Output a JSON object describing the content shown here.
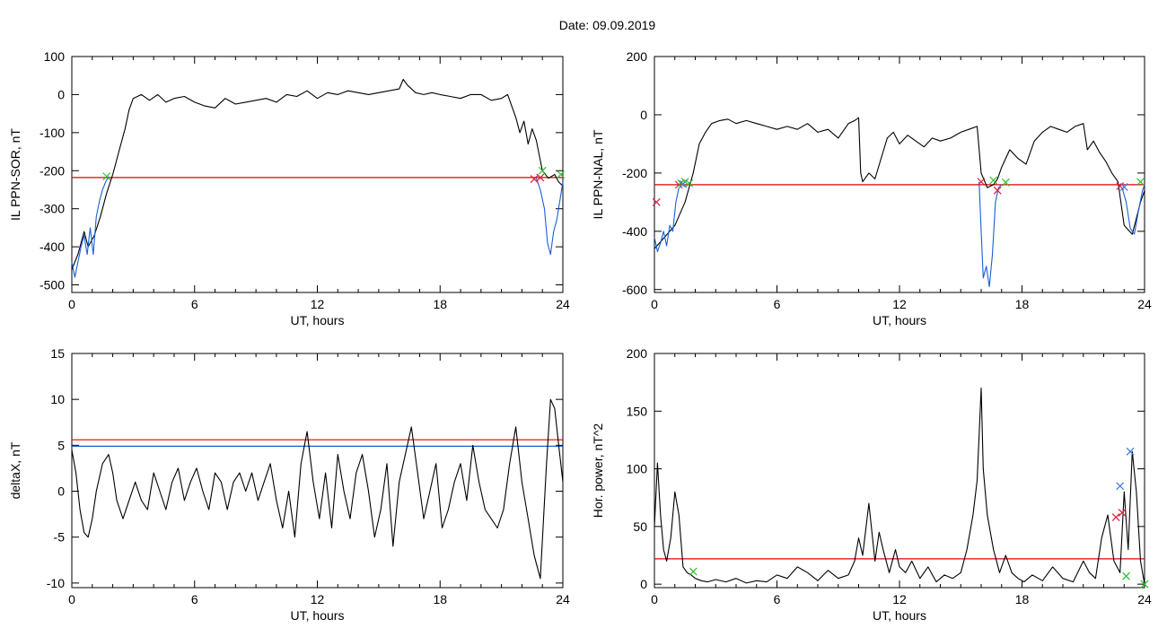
{
  "page": {
    "title": "Date:  09.09.2019"
  },
  "colors": {
    "black": "#000000",
    "red": "#e00000",
    "blue": "#1a5fd6",
    "green": "#22c022",
    "crimson": "#d81e3c",
    "cross_blue": "#3a7ad8"
  },
  "chart_data": [
    {
      "type": "line",
      "id": "il-ppn-sor",
      "xlabel": "UT, hours",
      "ylabel": "IL PPN-SOR, nT",
      "xlim": [
        0,
        24
      ],
      "ylim": [
        -520,
        100
      ],
      "xticks": [
        0,
        6,
        12,
        18,
        24
      ],
      "yticks": [
        100,
        0,
        -100,
        -200,
        -300,
        -400,
        -500
      ],
      "threshold": -218,
      "series": [
        {
          "color": "black",
          "x": [
            0,
            0.3,
            0.6,
            0.8,
            1.1,
            1.4,
            1.7,
            2.0,
            2.3,
            2.6,
            2.8,
            3.0,
            3.4,
            3.8,
            4.2,
            4.6,
            5.0,
            5.5,
            6.0,
            6.5,
            7.0,
            7.5,
            8.0,
            8.5,
            9.0,
            9.5,
            10.0,
            10.5,
            11.0,
            11.5,
            12.0,
            12.5,
            13.0,
            13.5,
            14.0,
            14.5,
            15.0,
            15.5,
            16.0,
            16.2,
            16.4,
            16.8,
            17.2,
            17.6,
            18.0,
            18.5,
            19.0,
            19.5,
            20.0,
            20.5,
            21.0,
            21.3,
            21.5,
            21.7,
            21.9,
            22.1,
            22.3,
            22.5,
            22.7,
            23.0,
            23.3,
            23.6,
            23.8,
            24.0
          ],
          "y": [
            -460,
            -420,
            -360,
            -400,
            -370,
            -320,
            -260,
            -210,
            -150,
            -90,
            -40,
            -10,
            0,
            -15,
            0,
            -20,
            -10,
            -5,
            -20,
            -30,
            -35,
            -10,
            -25,
            -20,
            -15,
            -10,
            -20,
            0,
            -5,
            10,
            -10,
            5,
            0,
            10,
            5,
            0,
            5,
            10,
            15,
            40,
            25,
            5,
            0,
            5,
            0,
            -5,
            -10,
            0,
            0,
            -15,
            -10,
            0,
            -30,
            -60,
            -100,
            -70,
            -130,
            -90,
            -120,
            -200,
            -220,
            -210,
            -230,
            -240
          ]
        },
        {
          "color": "blue",
          "x": [
            0,
            0.15,
            0.3,
            0.45,
            0.6,
            0.75,
            0.9,
            1.05,
            1.2,
            1.35,
            1.5,
            1.65,
            1.8
          ],
          "y": [
            -440,
            -480,
            -440,
            -400,
            -370,
            -420,
            -350,
            -420,
            -320,
            -280,
            -250,
            -230,
            -215
          ]
        },
        {
          "color": "blue",
          "x": [
            22.7,
            22.9,
            23.1,
            23.25,
            23.4,
            23.55,
            23.7,
            23.85,
            24.0
          ],
          "y": [
            -220,
            -250,
            -300,
            -390,
            -420,
            -360,
            -330,
            -280,
            -230
          ]
        }
      ],
      "crosses": [
        {
          "color": "green",
          "x": [
            1.7,
            23.0,
            23.9
          ],
          "y": [
            -215,
            -200,
            -210
          ]
        },
        {
          "color": "crimson",
          "x": [
            22.6,
            22.9
          ],
          "y": [
            -222,
            -218
          ]
        }
      ]
    },
    {
      "type": "line",
      "id": "il-ppn-nal",
      "xlabel": "UT, hours",
      "ylabel": "IL PPN-NAL, nT",
      "xlim": [
        0,
        24
      ],
      "ylim": [
        -610,
        200
      ],
      "xticks": [
        0,
        6,
        12,
        18,
        24
      ],
      "yticks": [
        200,
        0,
        -200,
        -400,
        -600
      ],
      "threshold": -240,
      "series": [
        {
          "color": "black",
          "x": [
            0,
            0.5,
            1.0,
            1.5,
            1.9,
            2.2,
            2.5,
            2.8,
            3.2,
            3.6,
            4.0,
            4.5,
            5.0,
            5.5,
            6.0,
            6.5,
            7.0,
            7.5,
            8.0,
            8.5,
            9.0,
            9.5,
            9.8,
            10.0,
            10.1,
            10.2,
            10.5,
            10.8,
            11.1,
            11.4,
            11.7,
            12.0,
            12.4,
            12.8,
            13.2,
            13.6,
            14.0,
            14.5,
            15.0,
            15.4,
            15.8,
            16.0,
            16.3,
            16.6,
            16.8,
            17.0,
            17.4,
            17.8,
            18.2,
            18.6,
            19.0,
            19.4,
            19.8,
            20.2,
            20.6,
            21.0,
            21.2,
            21.5,
            21.8,
            22.1,
            22.4,
            22.7,
            23.0,
            23.4,
            23.8,
            24.0
          ],
          "y": [
            -460,
            -420,
            -380,
            -300,
            -200,
            -100,
            -60,
            -30,
            -20,
            -15,
            -30,
            -20,
            -30,
            -40,
            -50,
            -40,
            -50,
            -30,
            -60,
            -50,
            -80,
            -30,
            -20,
            -10,
            -200,
            -230,
            -200,
            -220,
            -150,
            -80,
            -60,
            -100,
            -70,
            -90,
            -110,
            -80,
            -90,
            -80,
            -60,
            -50,
            -40,
            -200,
            -250,
            -240,
            -220,
            -180,
            -120,
            -150,
            -170,
            -90,
            -60,
            -40,
            -50,
            -60,
            -40,
            -30,
            -120,
            -90,
            -130,
            -160,
            -200,
            -230,
            -380,
            -410,
            -300,
            -260
          ]
        },
        {
          "color": "blue",
          "x": [
            0,
            0.15,
            0.3,
            0.45,
            0.6,
            0.75,
            0.9,
            1.05,
            1.2
          ],
          "y": [
            -420,
            -470,
            -440,
            -400,
            -450,
            -380,
            -400,
            -300,
            -250
          ]
        },
        {
          "color": "blue",
          "x": [
            15.9,
            16.0,
            16.1,
            16.25,
            16.4,
            16.55,
            16.7,
            16.85,
            17.0
          ],
          "y": [
            -230,
            -400,
            -560,
            -520,
            -590,
            -480,
            -300,
            -250,
            -240
          ]
        },
        {
          "color": "blue",
          "x": [
            22.9,
            23.1,
            23.3,
            23.5,
            23.7,
            23.9,
            24.0
          ],
          "y": [
            -250,
            -300,
            -390,
            -410,
            -330,
            -260,
            -240
          ]
        }
      ],
      "crosses": [
        {
          "color": "crimson",
          "x": [
            0.1,
            1.2,
            16.0,
            16.8,
            22.8
          ],
          "y": [
            -300,
            -240,
            -230,
            -260,
            -245
          ]
        },
        {
          "color": "green",
          "x": [
            1.3,
            1.5,
            1.7,
            16.6,
            17.2,
            23.8
          ],
          "y": [
            -235,
            -230,
            -235,
            -225,
            -232,
            -230
          ]
        },
        {
          "color": "cross_blue",
          "x": [
            1.4,
            23.0
          ],
          "y": [
            -238,
            -248
          ]
        }
      ]
    },
    {
      "type": "line",
      "id": "delta-x",
      "xlabel": "UT, hours",
      "ylabel": "deltaX, nT",
      "xlim": [
        0,
        24
      ],
      "ylim": [
        -10.5,
        15
      ],
      "xticks": [
        0,
        6,
        12,
        18,
        24
      ],
      "yticks": [
        15,
        10,
        5,
        0,
        -5,
        -10
      ],
      "thresholds": [
        {
          "value": 5.6,
          "color": "red"
        },
        {
          "value": 4.9,
          "color": "blue"
        }
      ],
      "series": [
        {
          "color": "black",
          "x": [
            0,
            0.2,
            0.4,
            0.6,
            0.8,
            1.0,
            1.2,
            1.5,
            1.8,
            2.0,
            2.2,
            2.5,
            2.8,
            3.1,
            3.4,
            3.7,
            4.0,
            4.3,
            4.6,
            4.9,
            5.2,
            5.5,
            5.8,
            6.1,
            6.4,
            6.7,
            7.0,
            7.3,
            7.6,
            7.9,
            8.2,
            8.5,
            8.8,
            9.1,
            9.4,
            9.7,
            10.0,
            10.3,
            10.6,
            10.9,
            11.2,
            11.5,
            11.8,
            12.1,
            12.4,
            12.7,
            13.0,
            13.3,
            13.6,
            13.9,
            14.2,
            14.5,
            14.8,
            15.1,
            15.4,
            15.7,
            16.0,
            16.3,
            16.6,
            16.9,
            17.2,
            17.5,
            17.8,
            18.1,
            18.4,
            18.7,
            19.0,
            19.3,
            19.6,
            19.9,
            20.2,
            20.5,
            20.8,
            21.1,
            21.4,
            21.7,
            22.0,
            22.3,
            22.6,
            22.9,
            23.2,
            23.4,
            23.6,
            23.8,
            24.0
          ],
          "y": [
            4.5,
            2.0,
            -2.0,
            -4.5,
            -5.0,
            -3.0,
            0.0,
            3.0,
            4.0,
            2.0,
            -1.0,
            -3.0,
            -1.0,
            1.0,
            -1.0,
            -2.0,
            2.0,
            0.0,
            -2.0,
            1.0,
            2.5,
            -1.0,
            1.0,
            2.5,
            0.0,
            -2.0,
            2.0,
            1.0,
            -2.0,
            1.0,
            2.0,
            0.0,
            2.0,
            -1.0,
            1.0,
            3.0,
            -1.0,
            -4.0,
            0.0,
            -5.0,
            3.0,
            6.5,
            1.0,
            -3.0,
            2.0,
            -4.0,
            4.0,
            0.0,
            -3.0,
            2.0,
            4.0,
            0.0,
            -5.0,
            -2.0,
            3.0,
            -6.0,
            1.0,
            4.0,
            7.0,
            2.0,
            -3.0,
            0.0,
            3.0,
            -4.0,
            -2.0,
            1.0,
            3.0,
            -1.0,
            5.0,
            1.0,
            -2.0,
            -3.0,
            -4.0,
            -2.0,
            3.0,
            7.0,
            1.0,
            -3.0,
            -7.0,
            -9.5,
            3.0,
            10.0,
            9.0,
            5.0,
            1.0
          ]
        }
      ],
      "crosses": []
    },
    {
      "type": "line",
      "id": "hor-power",
      "xlabel": "UT, hours",
      "ylabel": "Hor. power, nT^2",
      "xlim": [
        0,
        24
      ],
      "ylim": [
        -3,
        200
      ],
      "xticks": [
        0,
        6,
        12,
        18,
        24
      ],
      "yticks": [
        200,
        150,
        100,
        50,
        0
      ],
      "threshold": 22,
      "series": [
        {
          "color": "black",
          "x": [
            0,
            0.15,
            0.3,
            0.45,
            0.6,
            0.8,
            1.0,
            1.2,
            1.4,
            1.6,
            1.8,
            2.0,
            2.3,
            2.6,
            3.0,
            3.5,
            4.0,
            4.5,
            5.0,
            5.5,
            6.0,
            6.5,
            7.0,
            7.5,
            8.0,
            8.5,
            9.0,
            9.5,
            9.8,
            10.0,
            10.2,
            10.5,
            10.8,
            11.0,
            11.2,
            11.5,
            11.8,
            12.0,
            12.3,
            12.6,
            13.0,
            13.4,
            13.8,
            14.2,
            14.6,
            15.0,
            15.3,
            15.6,
            15.8,
            16.0,
            16.1,
            16.3,
            16.6,
            16.9,
            17.2,
            17.5,
            17.8,
            18.1,
            18.5,
            19.0,
            19.5,
            20.0,
            20.5,
            21.0,
            21.3,
            21.6,
            21.9,
            22.2,
            22.5,
            22.8,
            23.0,
            23.2,
            23.4,
            23.6,
            23.8,
            24.0
          ],
          "y": [
            50,
            105,
            60,
            30,
            20,
            40,
            80,
            60,
            15,
            10,
            8,
            5,
            3,
            2,
            4,
            2,
            5,
            1,
            3,
            2,
            8,
            5,
            15,
            10,
            3,
            12,
            5,
            8,
            20,
            40,
            25,
            70,
            20,
            45,
            30,
            10,
            30,
            15,
            10,
            20,
            5,
            15,
            2,
            8,
            5,
            10,
            30,
            60,
            90,
            170,
            100,
            60,
            30,
            10,
            25,
            10,
            5,
            2,
            8,
            3,
            15,
            5,
            2,
            20,
            10,
            5,
            40,
            60,
            20,
            10,
            80,
            30,
            115,
            80,
            20,
            0
          ]
        }
      ],
      "crosses": [
        {
          "color": "crimson",
          "x": [
            22.6,
            22.9
          ],
          "y": [
            58,
            62
          ]
        },
        {
          "color": "cross_blue",
          "x": [
            22.8,
            23.3
          ],
          "y": [
            85,
            115
          ]
        },
        {
          "color": "green",
          "x": [
            1.9,
            23.1,
            24.0
          ],
          "y": [
            11,
            7,
            0
          ]
        }
      ]
    }
  ]
}
